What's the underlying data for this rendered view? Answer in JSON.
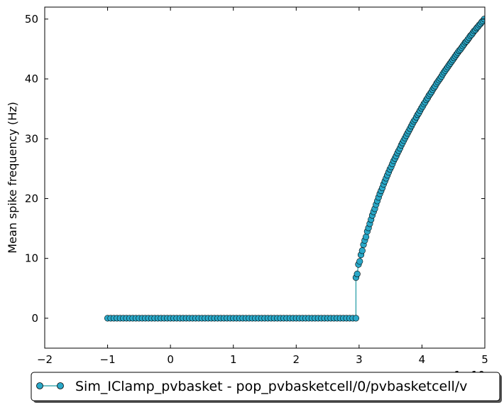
{
  "chart_data": {
    "type": "line",
    "title": "",
    "xlabel": "",
    "ylabel": "Mean spike frequency (Hz)",
    "x_offset_text": "1e-10",
    "xlim": [
      -2,
      5
    ],
    "ylim": [
      -5,
      52
    ],
    "x_ticks": [
      -2,
      -1,
      0,
      1,
      2,
      3,
      4,
      5
    ],
    "y_ticks": [
      0,
      10,
      20,
      30,
      40,
      50
    ],
    "grid": false,
    "legend_position": "bottom-center",
    "series": [
      {
        "name": "Sim_IClamp_pvbasket - pop_pvbasketcell/0/pvbasketcell/v",
        "color": "#1f9aa3",
        "marker_color": "#2aa8c8",
        "zero_range": [
          -1.0,
          2.95
        ],
        "zero_step": 0.05,
        "points": [
          [
            2.95,
            6.8
          ],
          [
            2.97,
            7.4
          ],
          [
            2.99,
            9.0
          ],
          [
            3.01,
            9.5
          ],
          [
            3.03,
            10.6
          ],
          [
            3.05,
            11.3
          ],
          [
            3.07,
            12.3
          ],
          [
            3.09,
            13.0
          ],
          [
            3.11,
            13.6
          ],
          [
            3.13,
            14.5
          ],
          [
            3.15,
            15.1
          ],
          [
            3.17,
            15.8
          ],
          [
            3.19,
            16.5
          ],
          [
            3.21,
            17.2
          ],
          [
            3.23,
            17.8
          ],
          [
            3.25,
            18.3
          ],
          [
            3.27,
            19.0
          ],
          [
            3.29,
            19.6
          ],
          [
            3.31,
            20.2
          ],
          [
            3.33,
            20.8
          ],
          [
            3.35,
            21.3
          ],
          [
            3.37,
            21.8
          ],
          [
            3.39,
            22.4
          ],
          [
            3.41,
            22.9
          ],
          [
            3.43,
            23.4
          ],
          [
            3.45,
            23.9
          ],
          [
            3.47,
            24.4
          ],
          [
            3.49,
            24.9
          ],
          [
            3.51,
            25.3
          ],
          [
            3.53,
            25.8
          ],
          [
            3.55,
            26.3
          ],
          [
            3.57,
            26.7
          ],
          [
            3.59,
            27.1
          ],
          [
            3.61,
            27.6
          ],
          [
            3.63,
            28.0
          ],
          [
            3.65,
            28.4
          ],
          [
            3.67,
            28.9
          ],
          [
            3.69,
            29.3
          ],
          [
            3.71,
            29.7
          ],
          [
            3.73,
            30.1
          ],
          [
            3.75,
            30.5
          ],
          [
            3.77,
            30.9
          ],
          [
            3.79,
            31.3
          ],
          [
            3.81,
            31.7
          ],
          [
            3.83,
            32.1
          ],
          [
            3.85,
            32.5
          ],
          [
            3.87,
            32.9
          ],
          [
            3.89,
            33.2
          ],
          [
            3.91,
            33.6
          ],
          [
            3.93,
            34.0
          ],
          [
            3.95,
            34.3
          ],
          [
            3.97,
            34.7
          ],
          [
            3.99,
            35.1
          ],
          [
            4.01,
            35.4
          ],
          [
            4.03,
            35.8
          ],
          [
            4.05,
            36.1
          ],
          [
            4.07,
            36.5
          ],
          [
            4.09,
            36.8
          ],
          [
            4.11,
            37.2
          ],
          [
            4.13,
            37.5
          ],
          [
            4.15,
            37.8
          ],
          [
            4.17,
            38.2
          ],
          [
            4.19,
            38.5
          ],
          [
            4.21,
            38.8
          ],
          [
            4.23,
            39.2
          ],
          [
            4.25,
            39.5
          ],
          [
            4.27,
            39.8
          ],
          [
            4.29,
            40.1
          ],
          [
            4.31,
            40.4
          ],
          [
            4.33,
            40.8
          ],
          [
            4.35,
            41.1
          ],
          [
            4.37,
            41.4
          ],
          [
            4.39,
            41.7
          ],
          [
            4.41,
            42.0
          ],
          [
            4.43,
            42.3
          ],
          [
            4.45,
            42.6
          ],
          [
            4.47,
            42.9
          ],
          [
            4.49,
            43.2
          ],
          [
            4.51,
            43.5
          ],
          [
            4.53,
            43.8
          ],
          [
            4.55,
            44.1
          ],
          [
            4.57,
            44.4
          ],
          [
            4.59,
            44.7
          ],
          [
            4.61,
            44.9
          ],
          [
            4.63,
            45.2
          ],
          [
            4.65,
            45.5
          ],
          [
            4.67,
            45.8
          ],
          [
            4.69,
            46.1
          ],
          [
            4.71,
            46.3
          ],
          [
            4.73,
            46.6
          ],
          [
            4.75,
            46.9
          ],
          [
            4.77,
            47.2
          ],
          [
            4.79,
            47.4
          ],
          [
            4.81,
            47.7
          ],
          [
            4.83,
            48.0
          ],
          [
            4.85,
            48.2
          ],
          [
            4.87,
            48.5
          ],
          [
            4.89,
            48.7
          ],
          [
            4.91,
            49.0
          ],
          [
            4.93,
            49.2
          ],
          [
            4.95,
            49.5
          ],
          [
            4.97,
            49.7
          ],
          [
            4.99,
            50.0
          ]
        ]
      }
    ]
  }
}
